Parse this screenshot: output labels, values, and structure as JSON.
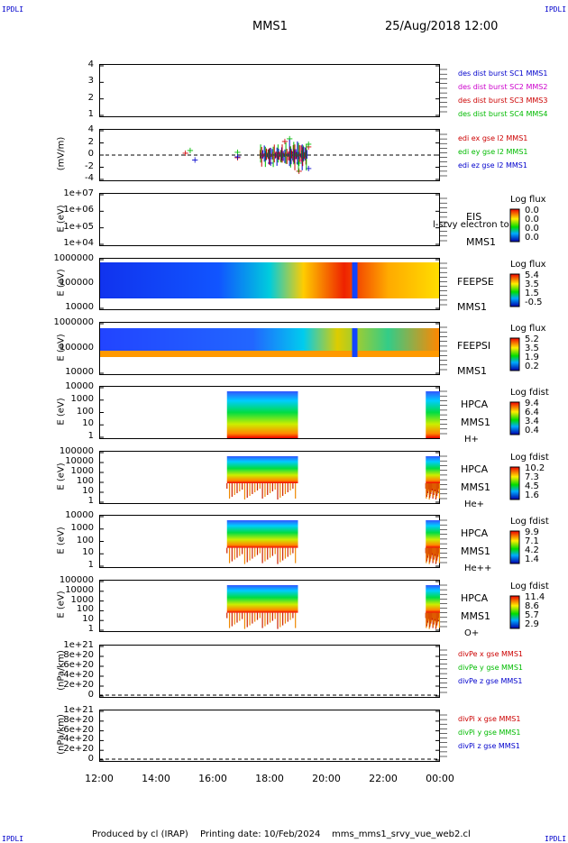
{
  "header": {
    "corner": "IPDLI",
    "mission": "MMS1",
    "date": "25/Aug/2018 12:00"
  },
  "footer": {
    "produced": "Produced by cl (IRAP)",
    "printing": "Printing date: 10/Feb/2024",
    "file": "mms_mms1_srvy_vue_web2.cl"
  },
  "colors": {
    "blue": "#0000cc",
    "red": "#cc0000",
    "green": "#00bb00",
    "magenta": "#cc00cc"
  },
  "panels": [
    {
      "id": "dist",
      "ylabel": "",
      "ticks": [
        "4",
        "3",
        "2",
        "1"
      ],
      "right_labels": [
        {
          "text": "des dist burst SC1 MMS1",
          "color": "#0000cc"
        },
        {
          "text": "des dist burst SC2 MMS2",
          "color": "#cc00cc"
        },
        {
          "text": "des dist burst SC3 MMS3",
          "color": "#cc0000"
        },
        {
          "text": "des dist burst SC4 MMS4",
          "color": "#00bb00"
        }
      ]
    },
    {
      "id": "edi",
      "ylabel": "(mV/m)",
      "ticks": [
        "4",
        "2",
        "0",
        "-2",
        "-4"
      ],
      "right_labels": [
        {
          "text": "edi ex gse l2 MMS1",
          "color": "#cc0000"
        },
        {
          "text": "edi ey gse l2 MMS1",
          "color": "#00bb00"
        },
        {
          "text": "edi ez gse l2 MMS1",
          "color": "#0000cc"
        }
      ]
    },
    {
      "id": "eis",
      "ylabel": "E (eV)",
      "ticks": [
        "1e+07",
        "1e+06",
        "1e+05",
        "1e+04"
      ],
      "names": [
        "EIS",
        "MMS1"
      ],
      "overlay": "l-srvy electron to",
      "cb_title": "Log flux",
      "cb_values": [
        "0.0",
        "0.0",
        "0.0",
        "0.0"
      ]
    },
    {
      "id": "feepse",
      "ylabel": "E (eV)",
      "ticks": [
        "1000000",
        "100000",
        "10000"
      ],
      "names": [
        "FEEPSE",
        "MMS1"
      ],
      "cb_title": "Log flux",
      "cb_values": [
        "5.4",
        "3.5",
        "1.5",
        "-0.5"
      ]
    },
    {
      "id": "feepsi",
      "ylabel": "E (eV)",
      "ticks": [
        "1000000",
        "100000",
        "10000"
      ],
      "names": [
        "FEEPSI",
        "MMS1"
      ],
      "cb_title": "Log flux",
      "cb_values": [
        "5.2",
        "3.5",
        "1.9",
        "0.2"
      ]
    },
    {
      "id": "hpca_h",
      "ylabel": "E (eV)",
      "ticks": [
        "10000",
        "1000",
        "100",
        "10",
        "1"
      ],
      "names": [
        "HPCA",
        "MMS1",
        "H+"
      ],
      "cb_title": "Log fdist",
      "cb_values": [
        "9.4",
        "6.4",
        "3.4",
        "0.4"
      ]
    },
    {
      "id": "hpca_he",
      "ylabel": "E (eV)",
      "ticks": [
        "100000",
        "10000",
        "1000",
        "100",
        "10",
        "1"
      ],
      "names": [
        "HPCA",
        "MMS1",
        "He+"
      ],
      "cb_title": "Log fdist",
      "cb_values": [
        "10.2",
        "7.3",
        "4.5",
        "1.6"
      ]
    },
    {
      "id": "hpca_hepp",
      "ylabel": "E (eV)",
      "ticks": [
        "10000",
        "1000",
        "100",
        "10",
        "1"
      ],
      "names": [
        "HPCA",
        "MMS1",
        "He++"
      ],
      "cb_title": "Log fdist",
      "cb_values": [
        "9.9",
        "7.1",
        "4.2",
        "1.4"
      ]
    },
    {
      "id": "hpca_o",
      "ylabel": "E (eV)",
      "ticks": [
        "100000",
        "10000",
        "1000",
        "100",
        "10",
        "1"
      ],
      "names": [
        "HPCA",
        "MMS1",
        "O+"
      ],
      "cb_title": "Log fdist",
      "cb_values": [
        "11.4",
        "8.6",
        "5.7",
        "2.9"
      ]
    },
    {
      "id": "divpe",
      "ylabel": "(nPa/km)",
      "ticks": [
        "1e+21",
        "8e+20",
        "6e+20",
        "4e+20",
        "2e+20",
        "0"
      ],
      "right_labels": [
        {
          "text": "divPe x gse MMS1",
          "color": "#cc0000"
        },
        {
          "text": "divPe y gse MMS1",
          "color": "#00bb00"
        },
        {
          "text": "divPe z gse MMS1",
          "color": "#0000cc"
        }
      ]
    },
    {
      "id": "divpi",
      "ylabel": "(nPa/km)",
      "ticks": [
        "1e+21",
        "8e+20",
        "6e+20",
        "4e+20",
        "2e+20",
        "0"
      ],
      "right_labels": [
        {
          "text": "divPi x gse MMS1",
          "color": "#cc0000"
        },
        {
          "text": "divPi y gse MMS1",
          "color": "#00bb00"
        },
        {
          "text": "divPi z gse MMS1",
          "color": "#0000cc"
        }
      ]
    }
  ],
  "chart_data": {
    "type": "heatmap",
    "xlabel": "",
    "x_ticks": [
      "12:00",
      "14:00",
      "16:00",
      "18:00",
      "20:00",
      "22:00",
      "00:00"
    ],
    "xlim": [
      "12:00",
      "00:00"
    ],
    "series_edi": [
      {
        "name": "edi ex gse l2 MMS1",
        "x": [
          "15:00",
          "16:50",
          "18:30",
          "19:00",
          "19:20"
        ],
        "values": [
          0.3,
          -0.5,
          2.5,
          -3.0,
          1.5
        ]
      },
      {
        "name": "edi ey gse l2 MMS1",
        "x": [
          "15:10",
          "16:50",
          "18:40",
          "19:00",
          "19:20"
        ],
        "values": [
          0.8,
          0.5,
          3.0,
          -1.5,
          2.0
        ]
      },
      {
        "name": "edi ez gse l2 MMS1",
        "x": [
          "15:20",
          "16:50",
          "18:00",
          "18:50",
          "19:20"
        ],
        "values": [
          -0.9,
          -0.3,
          -1.5,
          0.5,
          -2.5
        ]
      }
    ],
    "hpca_intervals": [
      [
        "16:30",
        "19:00"
      ],
      [
        "23:30",
        "00:00"
      ]
    ]
  }
}
